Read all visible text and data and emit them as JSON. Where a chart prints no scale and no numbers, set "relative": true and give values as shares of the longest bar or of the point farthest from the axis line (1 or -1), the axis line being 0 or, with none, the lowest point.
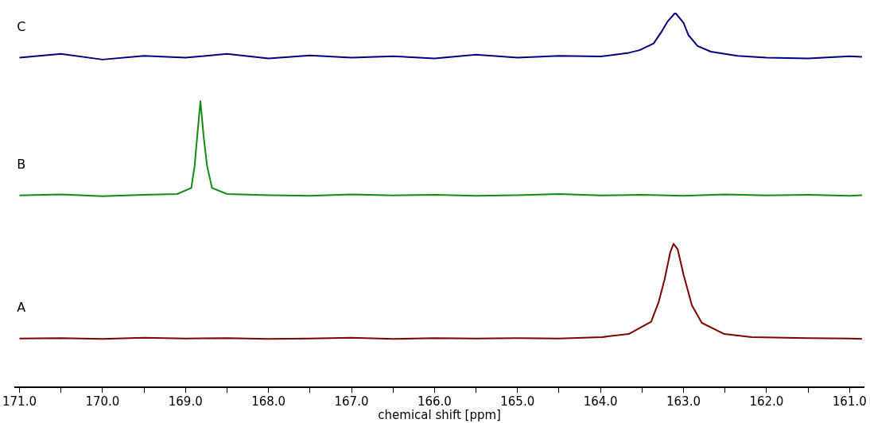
{
  "chart_data": {
    "type": "line",
    "xlabel": "chemical shift [ppm]",
    "relative": true,
    "grid": false,
    "legend": false,
    "marker": "none",
    "line_style": "solid",
    "xlim": [
      171.05,
      160.83
    ],
    "xticks": [
      {
        "value": 171,
        "label": "171.0"
      },
      {
        "value": 170.5,
        "label": null
      },
      {
        "value": 170,
        "label": "170.0"
      },
      {
        "value": 169.5,
        "label": null
      },
      {
        "value": 169,
        "label": "169.0"
      },
      {
        "value": 168.5,
        "label": null
      },
      {
        "value": 168,
        "label": "168.0"
      },
      {
        "value": 167.5,
        "label": null
      },
      {
        "value": 167,
        "label": "167.0"
      },
      {
        "value": 166.5,
        "label": null
      },
      {
        "value": 166,
        "label": "166.0"
      },
      {
        "value": 165.5,
        "label": null
      },
      {
        "value": 165,
        "label": "165.0"
      },
      {
        "value": 164.5,
        "label": null
      },
      {
        "value": 164,
        "label": "164.0"
      },
      {
        "value": 163.5,
        "label": null
      },
      {
        "value": 163,
        "label": "163.0"
      },
      {
        "value": 162.5,
        "label": null
      },
      {
        "value": 162,
        "label": "162.0"
      },
      {
        "value": 161.5,
        "label": null
      },
      {
        "value": 161,
        "label": "161.0"
      }
    ],
    "series": [
      {
        "name": "C",
        "color": "#000080",
        "x": [
          171.0,
          170.5,
          170.0,
          169.5,
          169.0,
          168.5,
          168.0,
          167.5,
          167.0,
          166.5,
          166.0,
          165.5,
          165.0,
          164.5,
          164.0,
          163.66,
          163.53,
          163.36,
          163.26,
          163.19,
          163.1,
          163.0,
          162.94,
          162.83,
          162.67,
          162.35,
          162.0,
          161.5,
          161.0,
          160.85
        ],
        "values": [
          0.88,
          0.89,
          0.875,
          0.885,
          0.88,
          0.89,
          0.878,
          0.886,
          0.88,
          0.884,
          0.878,
          0.888,
          0.88,
          0.885,
          0.883,
          0.893,
          0.9,
          0.918,
          0.951,
          0.977,
          1,
          0.973,
          0.94,
          0.911,
          0.896,
          0.885,
          0.88,
          0.878,
          0.884,
          0.882
        ]
      },
      {
        "name": "B",
        "color": "#138a13",
        "x": [
          171.0,
          170.5,
          170.0,
          169.5,
          169.1,
          168.93,
          168.89,
          168.86,
          168.82,
          168.78,
          168.74,
          168.68,
          168.5,
          168.0,
          167.5,
          167.0,
          166.5,
          166.0,
          165.5,
          165.0,
          164.5,
          164.0,
          163.5,
          163.0,
          162.5,
          162.0,
          161.5,
          161.0,
          160.85
        ],
        "values": [
          0.512,
          0.515,
          0.51,
          0.514,
          0.516,
          0.532,
          0.591,
          0.667,
          0.764,
          0.667,
          0.591,
          0.532,
          0.516,
          0.513,
          0.511,
          0.515,
          0.512,
          0.514,
          0.511,
          0.513,
          0.516,
          0.512,
          0.514,
          0.511,
          0.515,
          0.512,
          0.514,
          0.511,
          0.513
        ]
      },
      {
        "name": "A",
        "color": "#800000",
        "x": [
          171.0,
          170.5,
          170.0,
          169.5,
          169.0,
          168.5,
          168.0,
          167.5,
          167.0,
          166.5,
          166.0,
          165.5,
          165.0,
          164.5,
          163.98,
          163.66,
          163.39,
          163.3,
          163.23,
          163.16,
          163.12,
          163.07,
          163.0,
          162.9,
          162.78,
          162.51,
          162.18,
          161.5,
          161.0,
          160.85
        ],
        "values": [
          0.13,
          0.131,
          0.129,
          0.132,
          0.13,
          0.131,
          0.129,
          0.13,
          0.132,
          0.129,
          0.131,
          0.13,
          0.131,
          0.13,
          0.134,
          0.142,
          0.175,
          0.227,
          0.286,
          0.36,
          0.383,
          0.368,
          0.301,
          0.219,
          0.172,
          0.142,
          0.134,
          0.131,
          0.13,
          0.129
        ]
      }
    ]
  }
}
